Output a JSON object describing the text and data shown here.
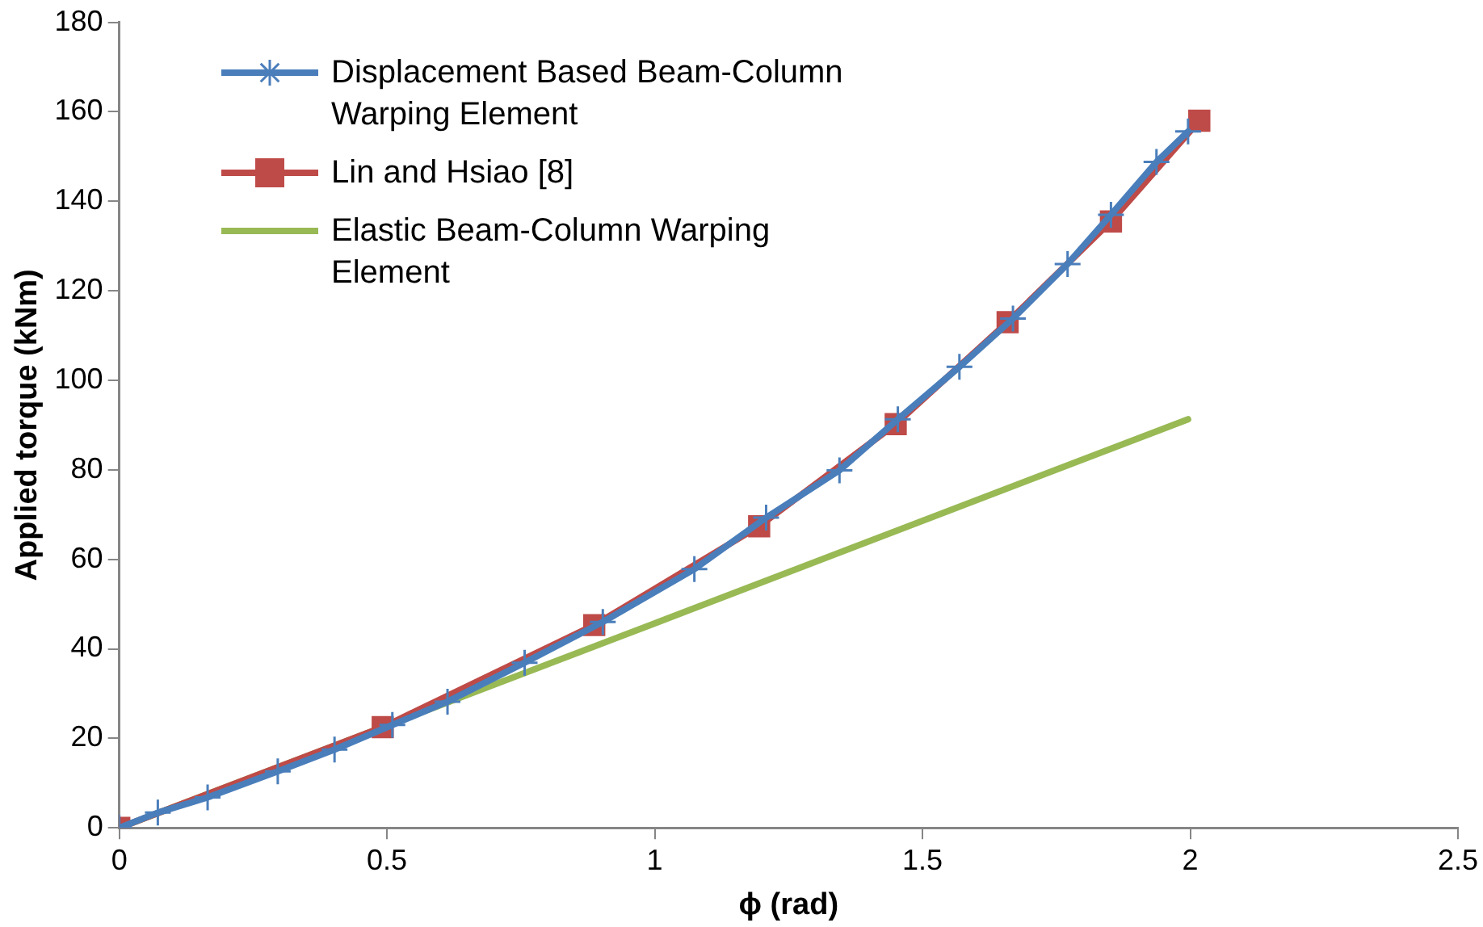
{
  "chart_data": {
    "type": "line",
    "xlabel": "ϕ (rad)",
    "ylabel": "Applied torque (kNm)",
    "xlim": [
      0,
      2.5
    ],
    "xticks": [
      0,
      0.5,
      1,
      1.5,
      2,
      2.5
    ],
    "ylim": [
      0,
      180
    ],
    "yticks": [
      0,
      20,
      40,
      60,
      80,
      100,
      120,
      140,
      160,
      180
    ],
    "grid": false,
    "legend": "top left",
    "series": [
      {
        "name": "Displacement Based Beam-Column Warping Element",
        "color": "#4a7ebb",
        "marker": "cross",
        "x": [
          0,
          0.072,
          0.165,
          0.296,
          0.402,
          0.51,
          0.613,
          0.757,
          0.903,
          1.074,
          1.208,
          1.345,
          1.454,
          1.569,
          1.669,
          1.771,
          1.852,
          1.937,
          1.996
        ],
        "values": [
          0,
          3.4,
          6.8,
          12.6,
          17.5,
          23,
          28.2,
          36.9,
          46,
          57.8,
          69.3,
          79.9,
          91.3,
          103,
          113.8,
          126,
          137,
          148.8,
          155.6
        ]
      },
      {
        "name": "Lin and Hsiao [8]",
        "color": "#be4b48",
        "marker": "square",
        "x": [
          0,
          0.492,
          0.887,
          1.195,
          1.45,
          1.659,
          1.852,
          2.017
        ],
        "values": [
          0,
          22.5,
          45.3,
          67.4,
          90.2,
          113,
          135.5,
          158
        ]
      },
      {
        "name": "Elastic Beam-Column Warping Element",
        "color": "#98b954",
        "marker": "none",
        "x": [
          0,
          1,
          1.996
        ],
        "values": [
          0,
          45.7,
          91.3
        ]
      }
    ]
  }
}
